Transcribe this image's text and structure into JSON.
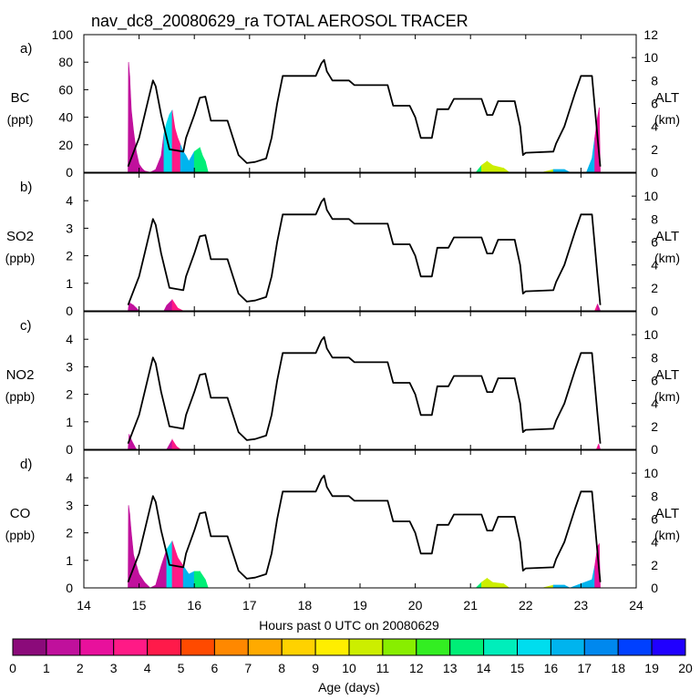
{
  "chart_data": {
    "type": "area",
    "title": "nav_dc8_20080629_ra TOTAL AEROSOL TRACER",
    "xlabel": "Hours past 0 UTC on 20080629",
    "xlim": [
      14,
      24
    ],
    "xticks": [
      "14",
      "15",
      "16",
      "17",
      "18",
      "19",
      "20",
      "21",
      "22",
      "23",
      "24"
    ],
    "panels": [
      {
        "letter": "a)",
        "species": "BC",
        "unit": "(ppt)",
        "ylim": [
          0,
          100
        ],
        "yticks": [
          "0",
          "20",
          "40",
          "60",
          "80",
          "100"
        ],
        "alt_ylim": [
          0,
          12
        ],
        "alt_ticks": [
          "0",
          "2",
          "4",
          "6",
          "8",
          "10",
          "12"
        ],
        "alt_label": "ALT",
        "alt_unit": "(km)",
        "tracer": [
          [
            14.8,
            0
          ],
          [
            14.81,
            80
          ],
          [
            14.83,
            70
          ],
          [
            14.86,
            45
          ],
          [
            14.9,
            30
          ],
          [
            14.95,
            15
          ],
          [
            15.0,
            6
          ],
          [
            15.05,
            3
          ],
          [
            15.1,
            1
          ],
          [
            15.2,
            0
          ],
          [
            15.3,
            2
          ],
          [
            15.4,
            12
          ],
          [
            15.45,
            28
          ],
          [
            15.5,
            36
          ],
          [
            15.55,
            42
          ],
          [
            15.6,
            45
          ],
          [
            15.65,
            32
          ],
          [
            15.7,
            25
          ],
          [
            15.75,
            20
          ],
          [
            15.8,
            15
          ],
          [
            15.85,
            12
          ],
          [
            15.9,
            8
          ],
          [
            16.0,
            15
          ],
          [
            16.1,
            18
          ],
          [
            16.15,
            12
          ],
          [
            16.2,
            8
          ],
          [
            16.25,
            0
          ],
          [
            21.1,
            0
          ],
          [
            21.2,
            5
          ],
          [
            21.3,
            8
          ],
          [
            21.4,
            5
          ],
          [
            21.6,
            3
          ],
          [
            21.7,
            0
          ],
          [
            22.3,
            0
          ],
          [
            22.5,
            2
          ],
          [
            22.7,
            2
          ],
          [
            22.8,
            0
          ],
          [
            23.0,
            0
          ],
          [
            23.1,
            0
          ],
          [
            23.2,
            10
          ],
          [
            23.25,
            25
          ],
          [
            23.3,
            40
          ],
          [
            23.33,
            47
          ],
          [
            23.35,
            0
          ]
        ],
        "dominant_age_days": [
          [
            14.8,
            1
          ],
          [
            15.45,
            15
          ],
          [
            15.6,
            3
          ],
          [
            15.75,
            16
          ],
          [
            16.0,
            13
          ],
          [
            21.2,
            10
          ],
          [
            22.5,
            16
          ],
          [
            23.25,
            2
          ]
        ]
      },
      {
        "letter": "b)",
        "species": "SO2",
        "unit": "(ppb)",
        "ylim": [
          0,
          5
        ],
        "yticks": [
          "0",
          "1",
          "2",
          "3",
          "4"
        ],
        "alt_ylim": [
          0,
          12
        ],
        "alt_ticks": [
          "0",
          "2",
          "4",
          "6",
          "8",
          "10"
        ],
        "alt_label": "ALT",
        "alt_unit": "(km)",
        "tracer": [
          [
            14.8,
            0
          ],
          [
            14.82,
            0.3
          ],
          [
            14.9,
            0.2
          ],
          [
            15.0,
            0
          ],
          [
            15.45,
            0
          ],
          [
            15.5,
            0.2
          ],
          [
            15.6,
            0.4
          ],
          [
            15.7,
            0.1
          ],
          [
            15.8,
            0
          ],
          [
            23.25,
            0
          ],
          [
            23.3,
            0.25
          ],
          [
            23.35,
            0
          ]
        ],
        "dominant_age_days": [
          [
            14.8,
            1
          ],
          [
            15.6,
            3
          ],
          [
            23.3,
            1
          ]
        ]
      },
      {
        "letter": "c)",
        "species": "NO2",
        "unit": "(ppb)",
        "ylim": [
          0,
          5
        ],
        "yticks": [
          "0",
          "1",
          "2",
          "3",
          "4"
        ],
        "alt_ylim": [
          0,
          12
        ],
        "alt_ticks": [
          "0",
          "2",
          "4",
          "6",
          "8",
          "10"
        ],
        "alt_label": "ALT",
        "alt_unit": "(km)",
        "tracer": [
          [
            14.8,
            0
          ],
          [
            14.82,
            0.55
          ],
          [
            14.87,
            0.3
          ],
          [
            14.95,
            0
          ],
          [
            15.5,
            0
          ],
          [
            15.6,
            0.35
          ],
          [
            15.68,
            0.1
          ],
          [
            15.75,
            0
          ],
          [
            23.28,
            0
          ],
          [
            23.32,
            0.2
          ],
          [
            23.35,
            0
          ]
        ],
        "dominant_age_days": [
          [
            14.8,
            1
          ],
          [
            15.6,
            3
          ],
          [
            23.3,
            2
          ]
        ]
      },
      {
        "letter": "d)",
        "species": "CO",
        "unit": "(ppb)",
        "ylim": [
          0,
          5
        ],
        "yticks": [
          "0",
          "1",
          "2",
          "3",
          "4"
        ],
        "alt_ylim": [
          0,
          12
        ],
        "alt_ticks": [
          "0",
          "2",
          "4",
          "6",
          "8",
          "10"
        ],
        "alt_label": "ALT",
        "alt_unit": "(km)",
        "tracer": [
          [
            14.8,
            0
          ],
          [
            14.81,
            3.0
          ],
          [
            14.83,
            2.7
          ],
          [
            14.86,
            2.0
          ],
          [
            14.9,
            1.2
          ],
          [
            15.0,
            0.5
          ],
          [
            15.1,
            0.2
          ],
          [
            15.2,
            0
          ],
          [
            15.3,
            0.1
          ],
          [
            15.4,
            0.8
          ],
          [
            15.5,
            1.4
          ],
          [
            15.6,
            1.7
          ],
          [
            15.7,
            1.1
          ],
          [
            15.8,
            0.8
          ],
          [
            15.9,
            0.5
          ],
          [
            16.0,
            0.6
          ],
          [
            16.1,
            0.6
          ],
          [
            16.2,
            0.3
          ],
          [
            16.25,
            0
          ],
          [
            21.1,
            0
          ],
          [
            21.2,
            0.2
          ],
          [
            21.3,
            0.35
          ],
          [
            21.4,
            0.2
          ],
          [
            21.6,
            0.15
          ],
          [
            21.7,
            0
          ],
          [
            22.3,
            0
          ],
          [
            22.5,
            0.1
          ],
          [
            22.7,
            0.1
          ],
          [
            22.8,
            0
          ],
          [
            23.2,
            0.3
          ],
          [
            23.25,
            0.8
          ],
          [
            23.3,
            1.5
          ],
          [
            23.33,
            1.6
          ],
          [
            23.35,
            0
          ]
        ],
        "dominant_age_days": [
          [
            14.8,
            1
          ],
          [
            15.45,
            15
          ],
          [
            15.6,
            3
          ],
          [
            15.75,
            16
          ],
          [
            16.0,
            13
          ],
          [
            21.2,
            10
          ],
          [
            22.5,
            16
          ],
          [
            23.25,
            2
          ]
        ]
      }
    ],
    "altitude_km": [
      [
        14.8,
        0.5
      ],
      [
        15.0,
        3.0
      ],
      [
        15.1,
        5.0
      ],
      [
        15.2,
        7.0
      ],
      [
        15.25,
        8.0
      ],
      [
        15.3,
        7.5
      ],
      [
        15.4,
        5.0
      ],
      [
        15.5,
        3.0
      ],
      [
        15.55,
        2.0
      ],
      [
        15.8,
        1.8
      ],
      [
        15.85,
        3.0
      ],
      [
        16.0,
        5.0
      ],
      [
        16.1,
        6.5
      ],
      [
        16.2,
        6.6
      ],
      [
        16.3,
        4.5
      ],
      [
        16.6,
        4.5
      ],
      [
        16.7,
        3.0
      ],
      [
        16.8,
        1.5
      ],
      [
        16.95,
        0.8
      ],
      [
        17.1,
        0.9
      ],
      [
        17.3,
        1.2
      ],
      [
        17.4,
        3.0
      ],
      [
        17.5,
        6.0
      ],
      [
        17.6,
        8.4
      ],
      [
        18.2,
        8.4
      ],
      [
        18.3,
        9.5
      ],
      [
        18.35,
        9.8
      ],
      [
        18.4,
        8.8
      ],
      [
        18.5,
        8.0
      ],
      [
        18.8,
        8.0
      ],
      [
        18.9,
        7.6
      ],
      [
        19.5,
        7.6
      ],
      [
        19.6,
        5.8
      ],
      [
        19.9,
        5.8
      ],
      [
        20.0,
        4.8
      ],
      [
        20.1,
        3.0
      ],
      [
        20.3,
        3.0
      ],
      [
        20.4,
        5.5
      ],
      [
        20.6,
        5.5
      ],
      [
        20.7,
        6.4
      ],
      [
        21.2,
        6.4
      ],
      [
        21.3,
        5.0
      ],
      [
        21.4,
        5.0
      ],
      [
        21.5,
        6.2
      ],
      [
        21.8,
        6.2
      ],
      [
        21.9,
        4.0
      ],
      [
        21.95,
        1.5
      ],
      [
        22.0,
        1.7
      ],
      [
        22.5,
        1.8
      ],
      [
        22.55,
        2.5
      ],
      [
        22.7,
        4.0
      ],
      [
        22.9,
        7.0
      ],
      [
        23.0,
        8.4
      ],
      [
        23.2,
        8.4
      ],
      [
        23.3,
        3.0
      ],
      [
        23.35,
        0.5
      ]
    ],
    "colorbar": {
      "label": "Age (days)",
      "ticks": [
        "0",
        "1",
        "2",
        "3",
        "4",
        "5",
        "6",
        "7",
        "8",
        "9",
        "10",
        "11",
        "12",
        "13",
        "14",
        "15",
        "16",
        "17",
        "18",
        "19",
        "20"
      ],
      "colors": [
        "#8b0a7a",
        "#c0109c",
        "#e8109c",
        "#ff1a86",
        "#ff1a4a",
        "#ff4a00",
        "#ff8800",
        "#ffaa00",
        "#ffd200",
        "#ffee00",
        "#ccee00",
        "#88ee00",
        "#33ee22",
        "#00ee77",
        "#00eebb",
        "#00ddee",
        "#00b4ee",
        "#0088ee",
        "#0040ff",
        "#2000ff"
      ]
    },
    "line_color": "#000000"
  }
}
